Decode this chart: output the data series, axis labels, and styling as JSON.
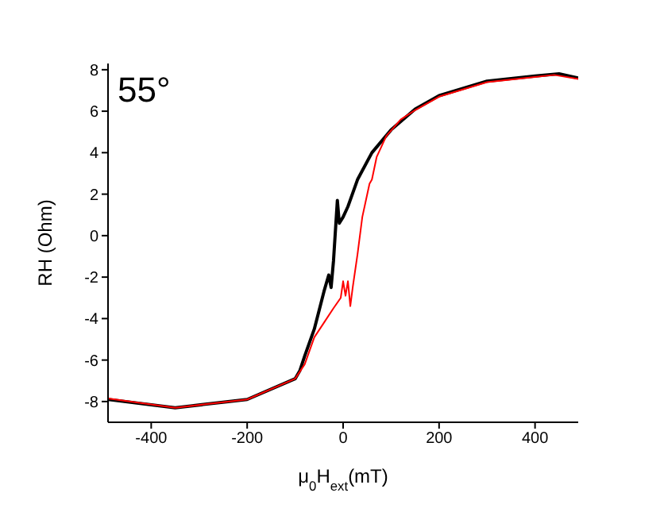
{
  "chart_data": {
    "type": "line",
    "xlabel": "μ$_{0}$H$_{ext}$(mT)",
    "ylabel": "RH (Ohm)",
    "annotations": [
      "55°"
    ],
    "xlim": [
      -490,
      490
    ],
    "xticks": [
      -400,
      -200,
      0,
      200,
      400
    ],
    "ylim": [
      -9,
      8.3
    ],
    "yticks": [
      -8,
      -6,
      -4,
      -2,
      0,
      2,
      4,
      6,
      8
    ],
    "grid": false,
    "legend": false,
    "marker": "none",
    "line_style": "solid",
    "series": [
      {
        "color": "#000000",
        "x": [
          -490,
          -350,
          -200,
          -100,
          -90,
          -80,
          -60,
          -40,
          -30,
          -25,
          -20,
          -12,
          -8,
          0,
          10,
          30,
          60,
          100,
          150,
          200,
          300,
          400,
          450,
          490
        ],
        "values": [
          -7.9,
          -8.3,
          -7.9,
          -6.9,
          -6.5,
          -5.8,
          -4.5,
          -2.7,
          -1.9,
          -2.5,
          -1.2,
          1.7,
          0.6,
          0.9,
          1.4,
          2.7,
          4.0,
          5.1,
          6.1,
          6.75,
          7.45,
          7.7,
          7.8,
          7.6
        ]
      },
      {
        "color": "#ff0000",
        "x": [
          -490,
          -350,
          -200,
          -100,
          -80,
          -60,
          -40,
          -20,
          -5,
          0,
          5,
          10,
          15,
          20,
          30,
          40,
          55,
          60,
          70,
          90,
          120,
          150,
          200,
          300,
          400,
          440,
          490
        ],
        "values": [
          -7.85,
          -8.3,
          -7.9,
          -6.9,
          -6.2,
          -4.9,
          -4.2,
          -3.5,
          -3.0,
          -2.2,
          -2.9,
          -2.2,
          -3.4,
          -2.5,
          -0.9,
          0.9,
          2.5,
          2.7,
          3.8,
          4.8,
          5.6,
          6.05,
          6.7,
          7.4,
          7.65,
          7.75,
          7.55
        ]
      }
    ]
  }
}
